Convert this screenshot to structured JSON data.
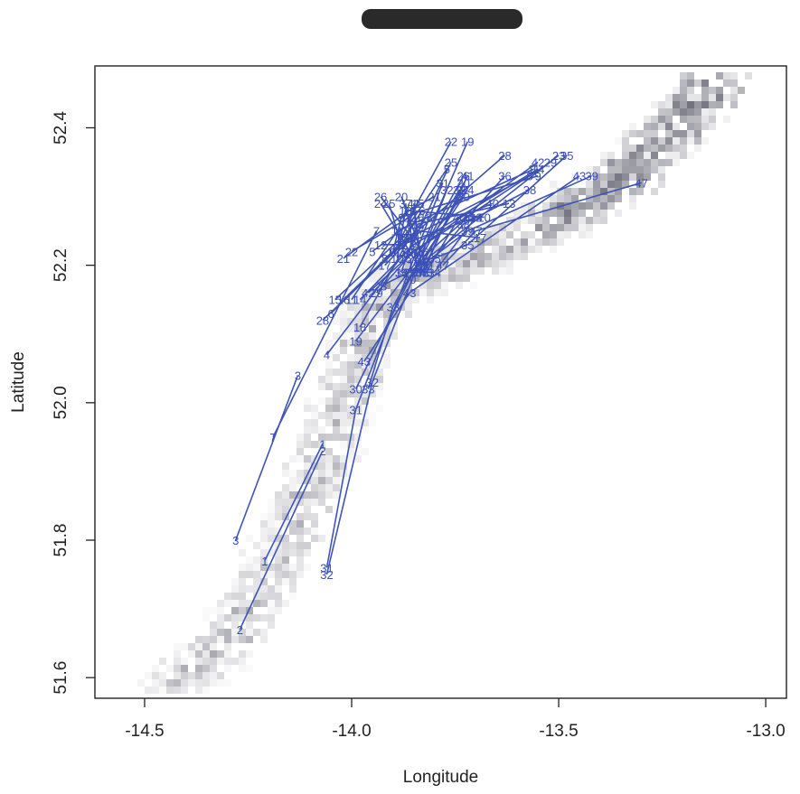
{
  "chart_data": {
    "type": "line",
    "title": "",
    "xlabel": "Longitude",
    "ylabel": "Latitude",
    "xlim": [
      -14.62,
      -12.95
    ],
    "ylim": [
      51.57,
      52.49
    ],
    "x_ticks": [
      -14.5,
      -14.0,
      -13.5,
      -13.0
    ],
    "x_tick_labels": [
      "-14.5",
      "-14.0",
      "-13.5",
      "-13.0"
    ],
    "y_ticks": [
      51.6,
      51.8,
      52.0,
      52.2,
      52.4
    ],
    "y_tick_labels": [
      "51.6",
      "51.8",
      "52.0",
      "52.2",
      "52.4"
    ],
    "grid": false,
    "line_color": "#3f55b5",
    "background": "density shading (grey)",
    "tracks": [
      {
        "points": [
          {
            "x": -14.28,
            "y": 51.8,
            "label": "3"
          },
          {
            "x": -14.13,
            "y": 52.04,
            "label": "3"
          }
        ]
      },
      {
        "points": [
          {
            "x": -14.27,
            "y": 51.67,
            "label": "2"
          },
          {
            "x": -14.07,
            "y": 51.93,
            "label": "2"
          }
        ]
      },
      {
        "points": [
          {
            "x": -14.21,
            "y": 51.77,
            "label": "1"
          },
          {
            "x": -14.07,
            "y": 51.94,
            "label": "1"
          }
        ]
      },
      {
        "points": [
          {
            "x": -14.19,
            "y": 51.95,
            "label": "7"
          },
          {
            "x": -13.94,
            "y": 52.25,
            "label": "7"
          }
        ]
      },
      {
        "points": [
          {
            "x": -14.06,
            "y": 52.07,
            "label": "4"
          },
          {
            "x": -13.87,
            "y": 52.22,
            "label": "4"
          }
        ]
      },
      {
        "points": [
          {
            "x": -14.06,
            "y": 51.75,
            "label": "32"
          },
          {
            "x": -13.95,
            "y": 52.03,
            "label": "32"
          },
          {
            "x": -13.77,
            "y": 52.31,
            "label": "32"
          }
        ]
      },
      {
        "points": [
          {
            "x": -14.06,
            "y": 51.76,
            "label": "31"
          },
          {
            "x": -13.99,
            "y": 51.99,
            "label": "31"
          },
          {
            "x": -13.78,
            "y": 52.32,
            "label": "31"
          }
        ]
      },
      {
        "points": [
          {
            "x": -13.96,
            "y": 52.02,
            "label": "33"
          },
          {
            "x": -13.9,
            "y": 52.14,
            "label": "33"
          },
          {
            "x": -13.74,
            "y": 52.31,
            "label": "33"
          }
        ]
      },
      {
        "points": [
          {
            "x": -13.99,
            "y": 52.02,
            "label": "30"
          },
          {
            "x": -13.86,
            "y": 52.18,
            "label": "30"
          },
          {
            "x": -13.73,
            "y": 52.3,
            "label": "30"
          }
        ]
      },
      {
        "points": [
          {
            "x": -13.97,
            "y": 52.06,
            "label": "43"
          },
          {
            "x": -13.86,
            "y": 52.16,
            "label": "43"
          },
          {
            "x": -13.45,
            "y": 52.33,
            "label": "43"
          }
        ]
      },
      {
        "points": [
          {
            "x": -13.99,
            "y": 52.09,
            "label": "19"
          },
          {
            "x": -13.85,
            "y": 52.2,
            "label": "19"
          },
          {
            "x": -13.72,
            "y": 52.38,
            "label": "19"
          }
        ]
      },
      {
        "points": [
          {
            "x": -13.98,
            "y": 52.11,
            "label": "18"
          },
          {
            "x": -13.86,
            "y": 52.24,
            "label": "18"
          },
          {
            "x": -13.82,
            "y": 52.27,
            "label": "18"
          }
        ]
      },
      {
        "points": [
          {
            "x": -14.07,
            "y": 52.12,
            "label": "28"
          },
          {
            "x": -13.86,
            "y": 52.24,
            "label": "28"
          },
          {
            "x": -13.63,
            "y": 52.36,
            "label": "28"
          }
        ]
      },
      {
        "points": [
          {
            "x": -14.05,
            "y": 52.13,
            "label": "6"
          },
          {
            "x": -13.88,
            "y": 52.23,
            "label": "6"
          },
          {
            "x": -13.83,
            "y": 52.28,
            "label": "6"
          }
        ]
      },
      {
        "points": [
          {
            "x": -14.04,
            "y": 52.15,
            "label": "15"
          },
          {
            "x": -13.88,
            "y": 52.24,
            "label": "15"
          },
          {
            "x": -13.84,
            "y": 52.29,
            "label": "15"
          }
        ]
      },
      {
        "points": [
          {
            "x": -14.02,
            "y": 52.15,
            "label": "16"
          },
          {
            "x": -13.9,
            "y": 52.22,
            "label": "16"
          },
          {
            "x": -13.84,
            "y": 52.27,
            "label": "16"
          }
        ]
      },
      {
        "points": [
          {
            "x": -14.0,
            "y": 52.15,
            "label": "11"
          },
          {
            "x": -13.89,
            "y": 52.25,
            "label": "11"
          },
          {
            "x": -13.56,
            "y": 52.34,
            "label": "11"
          }
        ]
      },
      {
        "points": [
          {
            "x": -13.98,
            "y": 52.15,
            "label": "14"
          },
          {
            "x": -13.85,
            "y": 52.23,
            "label": "14"
          },
          {
            "x": -13.55,
            "y": 52.34,
            "label": "14"
          }
        ]
      },
      {
        "points": [
          {
            "x": -13.96,
            "y": 52.16,
            "label": "42"
          },
          {
            "x": -13.85,
            "y": 52.22,
            "label": "42"
          },
          {
            "x": -13.55,
            "y": 52.35,
            "label": "42"
          }
        ]
      },
      {
        "points": [
          {
            "x": -13.94,
            "y": 52.16,
            "label": "29"
          },
          {
            "x": -13.85,
            "y": 52.22,
            "label": "29"
          },
          {
            "x": -13.52,
            "y": 52.35,
            "label": "29"
          }
        ]
      },
      {
        "points": [
          {
            "x": -13.93,
            "y": 52.17,
            "label": "23"
          },
          {
            "x": -13.86,
            "y": 52.19,
            "label": "23"
          },
          {
            "x": -13.5,
            "y": 52.36,
            "label": "23"
          }
        ]
      },
      {
        "points": [
          {
            "x": -14.02,
            "y": 52.21,
            "label": "21"
          },
          {
            "x": -13.86,
            "y": 52.28,
            "label": "21"
          },
          {
            "x": -13.8,
            "y": 52.3,
            "label": "21"
          }
        ]
      },
      {
        "points": [
          {
            "x": -14.0,
            "y": 52.22,
            "label": "22"
          },
          {
            "x": -13.86,
            "y": 52.27,
            "label": "22"
          },
          {
            "x": -13.76,
            "y": 52.38,
            "label": "22"
          }
        ]
      },
      {
        "points": [
          {
            "x": -13.95,
            "y": 52.22,
            "label": "5"
          },
          {
            "x": -13.86,
            "y": 52.26,
            "label": "5"
          },
          {
            "x": -13.77,
            "y": 52.34,
            "label": "5"
          }
        ]
      },
      {
        "points": [
          {
            "x": -13.92,
            "y": 52.21,
            "label": "8"
          },
          {
            "x": -13.86,
            "y": 52.24,
            "label": "8"
          },
          {
            "x": -13.57,
            "y": 52.33,
            "label": "8"
          }
        ]
      },
      {
        "points": [
          {
            "x": -13.93,
            "y": 52.23,
            "label": "12"
          },
          {
            "x": -13.88,
            "y": 52.23,
            "label": "12"
          },
          {
            "x": -13.7,
            "y": 52.27,
            "label": "12"
          }
        ]
      },
      {
        "points": [
          {
            "x": -13.9,
            "y": 52.22,
            "label": "9"
          },
          {
            "x": -13.88,
            "y": 52.27,
            "label": "9"
          },
          {
            "x": -13.55,
            "y": 52.33,
            "label": "9"
          }
        ]
      },
      {
        "points": [
          {
            "x": -13.89,
            "y": 52.21,
            "label": "10"
          },
          {
            "x": -13.87,
            "y": 52.28,
            "label": "10"
          },
          {
            "x": -13.68,
            "y": 52.27,
            "label": "10"
          }
        ]
      },
      {
        "points": [
          {
            "x": -13.88,
            "y": 52.19,
            "label": "13"
          },
          {
            "x": -13.84,
            "y": 52.26,
            "label": "13"
          },
          {
            "x": -13.62,
            "y": 52.29,
            "label": "13"
          }
        ]
      },
      {
        "points": [
          {
            "x": -13.92,
            "y": 52.2,
            "label": "17"
          },
          {
            "x": -13.84,
            "y": 52.25,
            "label": "17"
          },
          {
            "x": -13.69,
            "y": 52.24,
            "label": "17"
          }
        ]
      },
      {
        "points": [
          {
            "x": -13.93,
            "y": 52.3,
            "label": "26"
          },
          {
            "x": -13.83,
            "y": 52.22,
            "label": "26"
          },
          {
            "x": -13.73,
            "y": 52.33,
            "label": "26"
          }
        ]
      },
      {
        "points": [
          {
            "x": -13.93,
            "y": 52.29,
            "label": "24"
          },
          {
            "x": -13.85,
            "y": 52.21,
            "label": "24"
          },
          {
            "x": -13.72,
            "y": 52.31,
            "label": "24"
          }
        ]
      },
      {
        "points": [
          {
            "x": -13.91,
            "y": 52.29,
            "label": "25"
          },
          {
            "x": -13.87,
            "y": 52.21,
            "label": "25"
          },
          {
            "x": -13.76,
            "y": 52.35,
            "label": "25"
          }
        ]
      },
      {
        "points": [
          {
            "x": -13.88,
            "y": 52.3,
            "label": "20"
          },
          {
            "x": -13.82,
            "y": 52.2,
            "label": "20"
          },
          {
            "x": -13.73,
            "y": 52.32,
            "label": "20"
          }
        ]
      },
      {
        "points": [
          {
            "x": -13.87,
            "y": 52.29,
            "label": "37"
          },
          {
            "x": -13.84,
            "y": 52.19,
            "label": "37"
          },
          {
            "x": -13.73,
            "y": 52.31,
            "label": "37"
          }
        ]
      },
      {
        "points": [
          {
            "x": -13.85,
            "y": 52.29,
            "label": "41"
          },
          {
            "x": -13.83,
            "y": 52.19,
            "label": "41"
          },
          {
            "x": -13.72,
            "y": 52.33,
            "label": "41"
          }
        ]
      },
      {
        "points": [
          {
            "x": -13.88,
            "y": 52.19,
            "label": "34"
          },
          {
            "x": -13.8,
            "y": 52.19,
            "label": "34"
          },
          {
            "x": -13.7,
            "y": 52.27,
            "label": "34"
          }
        ]
      },
      {
        "points": [
          {
            "x": -13.83,
            "y": 52.19,
            "label": "38"
          },
          {
            "x": -13.73,
            "y": 52.26,
            "label": "38"
          },
          {
            "x": -13.57,
            "y": 52.31,
            "label": "38"
          }
        ]
      },
      {
        "points": [
          {
            "x": -13.83,
            "y": 52.2,
            "label": "39"
          },
          {
            "x": -13.72,
            "y": 52.25,
            "label": "39"
          },
          {
            "x": -13.42,
            "y": 52.33,
            "label": "39"
          }
        ]
      },
      {
        "points": [
          {
            "x": -13.82,
            "y": 52.19,
            "label": "40"
          },
          {
            "x": -13.74,
            "y": 52.27,
            "label": "40"
          },
          {
            "x": -13.66,
            "y": 52.29,
            "label": "40"
          }
        ]
      },
      {
        "points": [
          {
            "x": -13.83,
            "y": 52.21,
            "label": "36"
          },
          {
            "x": -13.72,
            "y": 52.27,
            "label": "36"
          },
          {
            "x": -13.63,
            "y": 52.33,
            "label": "36"
          }
        ]
      },
      {
        "points": [
          {
            "x": -13.8,
            "y": 52.21,
            "label": "35"
          },
          {
            "x": -13.72,
            "y": 52.23,
            "label": "35"
          },
          {
            "x": -13.48,
            "y": 52.36,
            "label": "35"
          }
        ]
      },
      {
        "points": [
          {
            "x": -13.78,
            "y": 52.2,
            "label": "47"
          },
          {
            "x": -13.7,
            "y": 52.25,
            "label": "47"
          },
          {
            "x": -13.3,
            "y": 52.32,
            "label": "47"
          }
        ]
      }
    ]
  }
}
